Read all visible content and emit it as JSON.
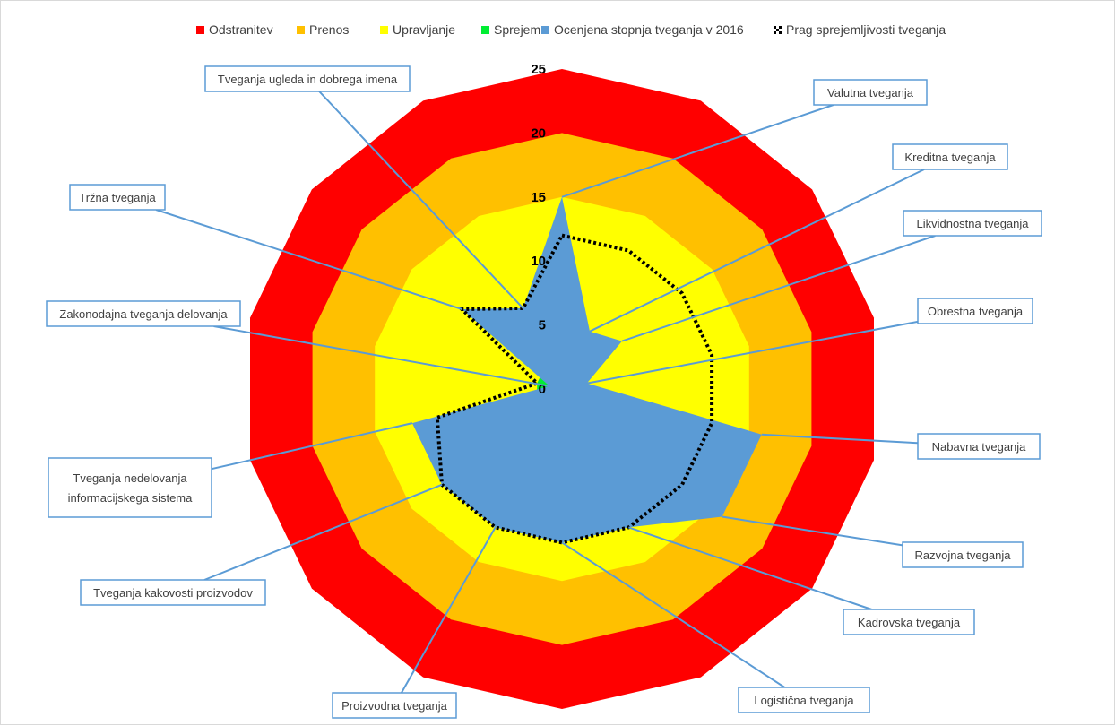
{
  "chart_data": {
    "type": "radar",
    "title": "",
    "categories": [
      "Valutna tveganja",
      "Kreditna tveganja",
      "Likvidnostna tveganja",
      "Obrestna tveganja",
      "Nabavna tveganja",
      "Razvojna tveganja",
      "Kadrovska tveganja",
      "Logistična tveganja",
      "Proizvodna tveganja",
      "Tveganja kakovosti proizvodov",
      "Tveganja nedelovanja informacijskega sistema",
      "Zakonodajna tveganja delovanja",
      "Tržna tveganja",
      "Tveganja ugleda in dobrega imena"
    ],
    "category_lines": [
      [
        "Valutna tveganja"
      ],
      [
        "Kreditna tveganja"
      ],
      [
        "Likvidnostna tveganja"
      ],
      [
        "Obrestna tveganja"
      ],
      [
        "Nabavna tveganja"
      ],
      [
        "Razvojna tveganja"
      ],
      [
        "Kadrovska tveganja"
      ],
      [
        "Logistična tveganja"
      ],
      [
        "Proizvodna tveganja"
      ],
      [
        "Tveganja kakovosti proizvodov"
      ],
      [
        "Tveganja nedelovanja",
        "informacijskega sistema"
      ],
      [
        "Zakonodajna tveganja delovanja"
      ],
      [
        "Tržna tveganja"
      ],
      [
        "Tveganja ugleda in dobrega imena"
      ]
    ],
    "series": [
      {
        "name": "Odstranitev",
        "color": "#ff0000",
        "kind": "band",
        "values": [
          25,
          25,
          25,
          25,
          25,
          25,
          25,
          25,
          25,
          25,
          25,
          25,
          25,
          25
        ]
      },
      {
        "name": "Prenos",
        "color": "#ffc000",
        "kind": "band",
        "values": [
          20,
          20,
          20,
          20,
          20,
          20,
          20,
          20,
          20,
          20,
          20,
          20,
          20,
          20
        ]
      },
      {
        "name": "Upravljanje",
        "color": "#ffff00",
        "kind": "band",
        "values": [
          15,
          15,
          15,
          15,
          15,
          15,
          15,
          15,
          15,
          15,
          15,
          15,
          15,
          15
        ]
      },
      {
        "name": "Sprejem",
        "color": "#00ee33",
        "kind": "band",
        "values": [
          2,
          2,
          2,
          2,
          2,
          2,
          2,
          2,
          2,
          2,
          2,
          2,
          2,
          2
        ]
      },
      {
        "name": "Ocenjena stopnja tveganja v 2016",
        "color": "#5b9bd5",
        "kind": "area",
        "values": [
          15,
          5,
          6,
          2,
          16,
          16,
          12,
          12,
          12,
          12,
          12,
          1,
          10,
          7
        ]
      },
      {
        "name": "Prag sprejemljivosti tveganja",
        "color": "#000000",
        "kind": "dotted",
        "values": [
          12,
          12,
          12,
          12,
          12,
          12,
          12,
          12,
          12,
          12,
          10,
          2,
          10,
          7
        ]
      }
    ],
    "ylim": [
      0,
      25
    ],
    "ticks": [
      "0",
      "5",
      "10",
      "15",
      "20",
      "25"
    ],
    "legend_position": "top"
  }
}
